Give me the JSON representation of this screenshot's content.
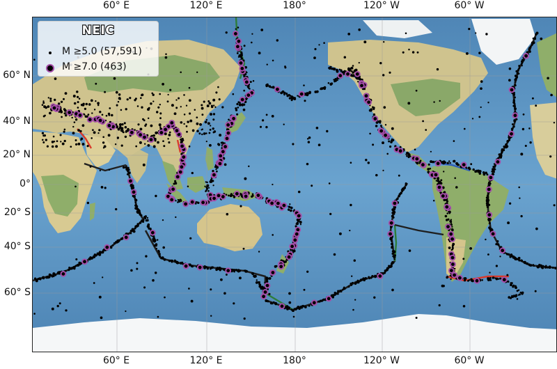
{
  "map": {
    "legend": {
      "title": "NEIC",
      "items": [
        {
          "label": "M ≥5.0 (57,591)",
          "symbol": "small-black-dot",
          "color": "#000000"
        },
        {
          "label": "M ≥7.0 (463)",
          "symbol": "purple-ring-marker",
          "color": "#a44ea8"
        }
      ]
    },
    "longitude_ticks": [
      "60° E",
      "120° E",
      "180°",
      "120° W",
      "60° W"
    ],
    "latitude_ticks": [
      "60° N",
      "40° N",
      "20° N",
      "0°",
      "20° S",
      "40° S",
      "60° S"
    ],
    "projection": "Mercator, centered near 150° E",
    "gridlines": true,
    "colors": {
      "ocean": "#5f9ac9",
      "land": "#d8cd9b",
      "vegetation": "#8fae6a",
      "ice": "#f5f7f8",
      "boundary_transform": "#2e7d3a",
      "boundary_divergent": "#d93a2b",
      "boundary_convergent": "#2f5fb8",
      "epicenter": "#000000",
      "major_epicenter": "#a44ea8"
    }
  }
}
